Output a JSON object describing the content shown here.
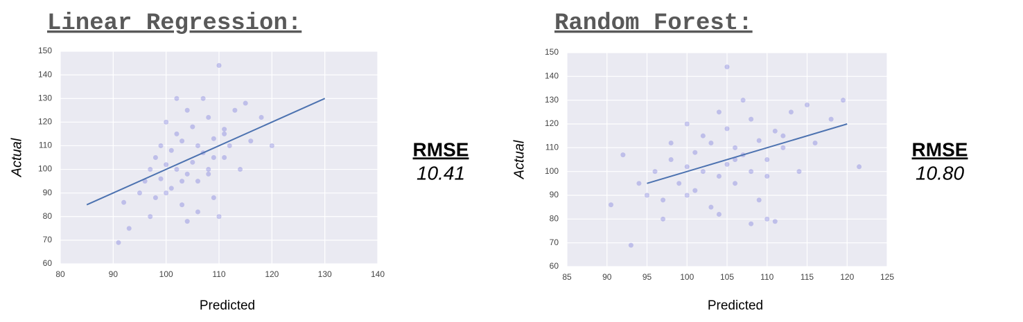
{
  "chart_data": [
    {
      "type": "scatter",
      "heading": "Linear Regression:",
      "xlabel": "Predicted",
      "ylabel": "Actual",
      "rmse_label": "RMSE",
      "rmse": "10.41",
      "color": "#3b3bd0",
      "background": "#eaeaf2",
      "grid": true,
      "xlim": [
        80,
        140
      ],
      "ylim": [
        60,
        150
      ],
      "xticks": [
        80,
        90,
        100,
        110,
        120,
        130,
        140
      ],
      "yticks": [
        60,
        70,
        80,
        90,
        100,
        110,
        120,
        130,
        140,
        150
      ],
      "x": [
        91,
        92,
        93,
        95,
        96,
        97,
        98,
        98,
        99,
        99,
        100,
        100,
        101,
        101,
        102,
        102,
        103,
        103,
        104,
        104,
        105,
        105,
        106,
        106,
        107,
        107,
        108,
        108,
        109,
        109,
        110,
        110,
        111,
        111,
        112,
        113,
        114,
        115,
        116,
        118,
        120,
        97,
        100,
        103,
        106,
        109,
        104,
        102,
        108,
        111
      ],
      "y": [
        69,
        86,
        75,
        90,
        95,
        100,
        105,
        88,
        110,
        96,
        102,
        120,
        92,
        108,
        100,
        115,
        85,
        112,
        98,
        125,
        103,
        118,
        95,
        110,
        107,
        130,
        100,
        122,
        88,
        113,
        144,
        80,
        105,
        117,
        110,
        125,
        100,
        128,
        112,
        122,
        110,
        80,
        90,
        95,
        82,
        105,
        78,
        130,
        98,
        115
      ],
      "line": {
        "x": [
          85,
          130
        ],
        "y": [
          85,
          130
        ],
        "color": "#4c72b0"
      }
    },
    {
      "type": "scatter",
      "heading": "Random Forest:",
      "xlabel": "Predicted",
      "ylabel": "Actual",
      "rmse_label": "RMSE",
      "rmse": "10.80",
      "color": "#3b3bd0",
      "background": "#eaeaf2",
      "grid": true,
      "xlim": [
        85,
        125
      ],
      "ylim": [
        60,
        150
      ],
      "xticks": [
        85,
        90,
        95,
        100,
        105,
        110,
        115,
        120,
        125
      ],
      "yticks": [
        60,
        70,
        80,
        90,
        100,
        110,
        120,
        130,
        140,
        150
      ],
      "x": [
        90.5,
        92,
        93,
        94,
        95,
        96,
        97,
        98,
        98,
        99,
        100,
        100,
        101,
        101,
        102,
        102,
        103,
        103,
        104,
        104,
        105,
        105,
        106,
        106,
        107,
        107,
        108,
        108,
        109,
        109,
        110,
        110,
        111,
        111,
        112,
        113,
        114,
        115,
        116,
        118,
        119.5,
        121.5,
        97,
        100,
        104,
        106,
        108,
        110,
        112,
        105
      ],
      "y": [
        86,
        107,
        69,
        95,
        90,
        100,
        88,
        105,
        112,
        95,
        102,
        120,
        92,
        108,
        100,
        115,
        85,
        112,
        98,
        125,
        144,
        118,
        95,
        110,
        107,
        130,
        100,
        122,
        88,
        113,
        105,
        80,
        117,
        79,
        110,
        125,
        100,
        128,
        112,
        122,
        130,
        102,
        80,
        90,
        82,
        105,
        78,
        98,
        115,
        103
      ],
      "line": {
        "x": [
          95,
          120
        ],
        "y": [
          95,
          120
        ],
        "color": "#4c72b0"
      }
    }
  ]
}
